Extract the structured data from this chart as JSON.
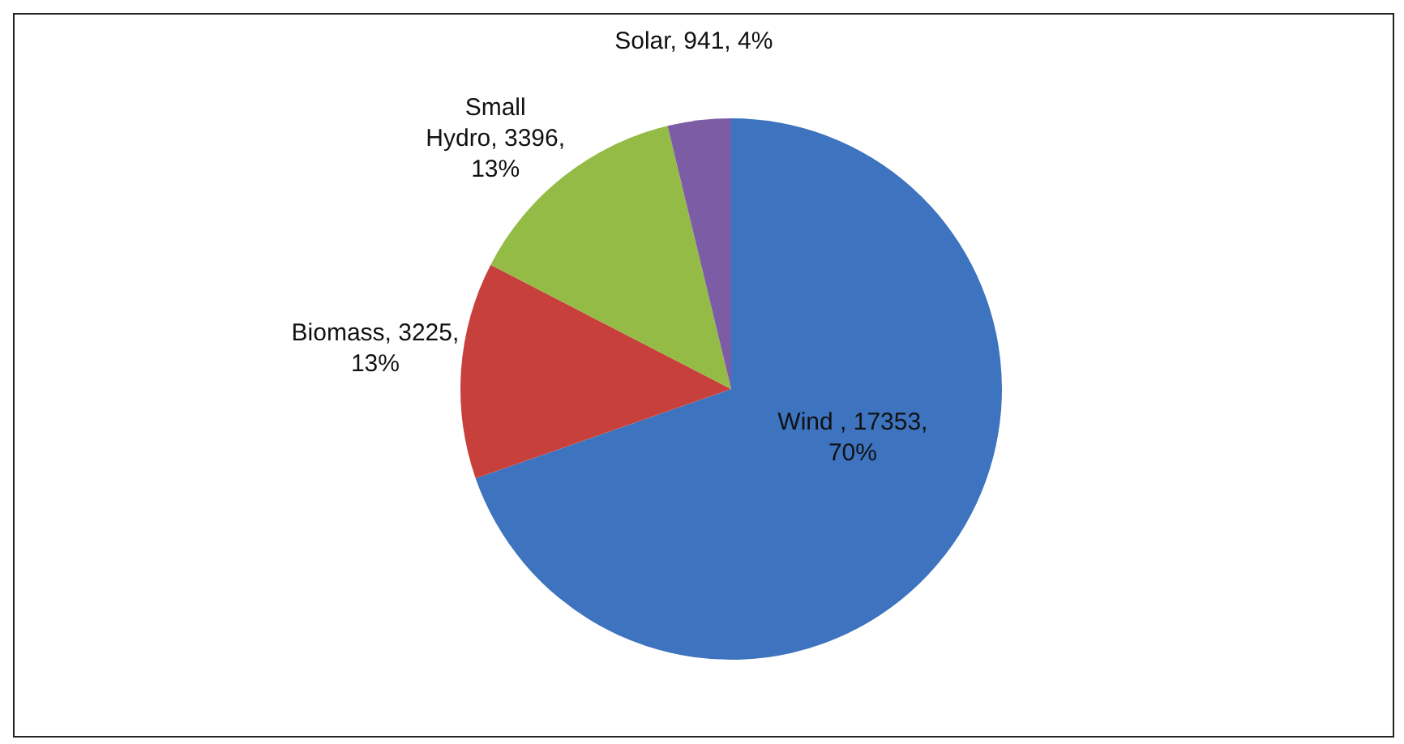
{
  "chart_data": {
    "type": "pie",
    "categories": [
      "Wind ",
      "Biomass",
      "Small Hydro",
      "Solar"
    ],
    "values": [
      17353,
      3225,
      3396,
      941
    ],
    "value_labels": [
      "17353, 70%",
      "3225, 13%",
      "3396, 13%",
      "941, 4%"
    ],
    "colors": [
      "#3d73bf",
      "#c8403b",
      "#93bb45",
      "#7d5ca6"
    ],
    "legend": false
  }
}
